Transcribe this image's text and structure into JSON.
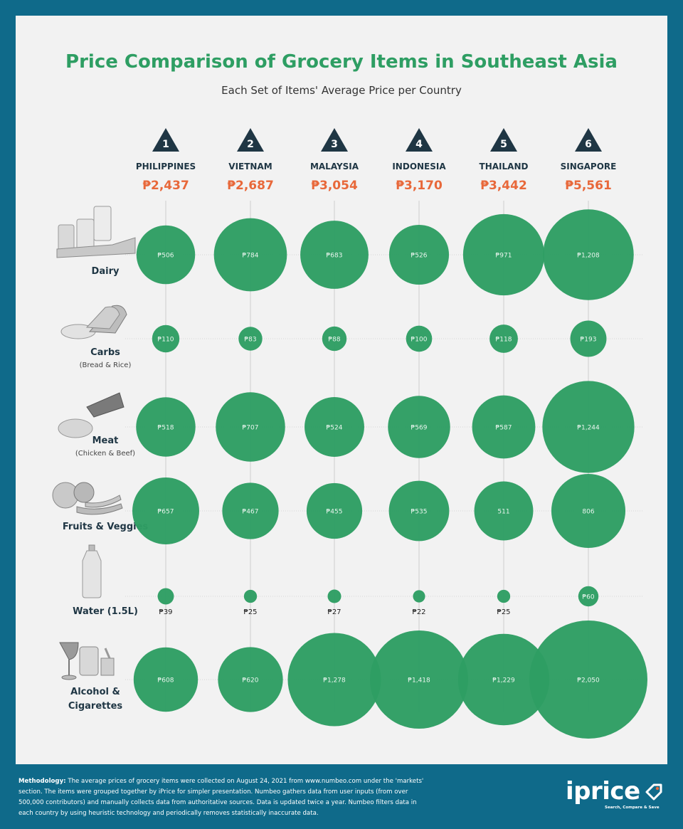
{
  "title": "Price Comparison of Grocery Items in Southeast Asia",
  "subtitle": "Each Set of Items' Average Price per Country",
  "colors": {
    "bubble": "#2e9e63",
    "title": "#2e9e63",
    "total": "#e8683a",
    "triangle": "#1f3644",
    "background": "#f2f2f2",
    "frame": "#0f6a8a"
  },
  "chart_data": {
    "type": "bubble",
    "title": "Price Comparison of Grocery Items in Southeast Asia",
    "subtitle": "Each Set of Items' Average Price per Country",
    "countries": [
      {
        "rank": "1",
        "name": "PHILIPPINES",
        "total": "₱2,437"
      },
      {
        "rank": "2",
        "name": "VIETNAM",
        "total": "₱2,687"
      },
      {
        "rank": "3",
        "name": "MALAYSIA",
        "total": "₱3,054"
      },
      {
        "rank": "4",
        "name": "INDONESIA",
        "total": "₱3,170"
      },
      {
        "rank": "5",
        "name": "THAILAND",
        "total": "₱3,442"
      },
      {
        "rank": "6",
        "name": "SINGAPORE",
        "total": "₱5,561"
      }
    ],
    "categories": [
      {
        "name": "Dairy",
        "sub": "",
        "icon": "dairy-icon",
        "values": [
          506,
          784,
          683,
          526,
          971,
          1208
        ],
        "labels": [
          "₱506",
          "₱784",
          "₱683",
          "₱526",
          "₱971",
          "₱1,208"
        ]
      },
      {
        "name": "Carbs",
        "sub": "(Bread & Rice)",
        "icon": "bread-rice-icon",
        "values": [
          110,
          83,
          88,
          100,
          118,
          193
        ],
        "labels": [
          "₱110",
          "₱83",
          "₱88",
          "₱100",
          "₱118",
          "₱193"
        ]
      },
      {
        "name": "Meat",
        "sub": "(Chicken & Beef)",
        "icon": "meat-icon",
        "values": [
          518,
          707,
          524,
          569,
          587,
          1244
        ],
        "labels": [
          "₱518",
          "₱707",
          "₱524",
          "₱569",
          "₱587",
          "₱1,244"
        ]
      },
      {
        "name": "Fruits & Veggies",
        "sub": "",
        "icon": "fruits-veggies-icon",
        "values": [
          657,
          467,
          455,
          535,
          511,
          806
        ],
        "labels": [
          "₱657",
          "₱467",
          "₱455",
          "₱535",
          "511",
          "806"
        ]
      },
      {
        "name": "Water (1.5L)",
        "sub": "",
        "icon": "water-bottle-icon",
        "values": [
          39,
          25,
          27,
          22,
          25,
          60
        ],
        "labels": [
          "₱39",
          "₱25",
          "₱27",
          "₱22",
          "₱25",
          "₱60"
        ]
      },
      {
        "name": "Alcohol &",
        "name2": "Cigarettes",
        "sub": "",
        "icon": "alcohol-cigarettes-icon",
        "values": [
          608,
          620,
          1278,
          1418,
          1229,
          2050
        ],
        "labels": [
          "₱608",
          "₱620",
          "₱1,278",
          "₱1,418",
          "₱1,229",
          "₱2,050"
        ]
      }
    ]
  },
  "footer": {
    "methodology_label": "Methodology:",
    "methodology_text": " The average prices of grocery items were collected on August 24, 2021 from www.numbeo.com under the 'markets' section. The items were grouped together by iPrice for simpler presentation. Numbeo gathers data from user inputs (from over 500,000 contributors) and manually collects data from authoritative sources. Data is updated twice a year. Numbeo filters data in each country by using heuristic technology and periodically removes statistically inaccurate data."
  },
  "logo": {
    "word": "iprice",
    "tagline": "Search, Compare & Save"
  }
}
